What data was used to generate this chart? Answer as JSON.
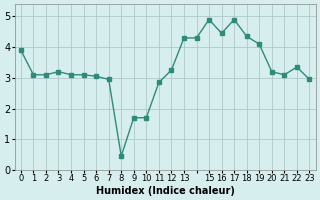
{
  "x": [
    0,
    1,
    2,
    3,
    4,
    5,
    6,
    7,
    8,
    9,
    10,
    11,
    12,
    13,
    14,
    15,
    16,
    17,
    18,
    19,
    20,
    21,
    22,
    23
  ],
  "y": [
    3.9,
    3.1,
    3.1,
    3.2,
    3.1,
    3.1,
    3.05,
    2.95,
    0.45,
    1.7,
    1.7,
    2.85,
    3.25,
    4.3,
    4.3,
    4.9,
    4.45,
    4.9,
    4.35,
    4.1,
    3.2,
    3.1,
    3.35,
    2.95
  ],
  "xlabel": "Humidex (Indice chaleur)",
  "ylabel": "",
  "xlim": [
    -0.5,
    23.5
  ],
  "ylim": [
    0,
    5.4
  ],
  "yticks": [
    0,
    1,
    2,
    3,
    4,
    5
  ],
  "xtick_labels": [
    "0",
    "1",
    "2",
    "3",
    "4",
    "5",
    "6",
    "7",
    "8",
    "9",
    "10",
    "11",
    "12",
    "13",
    "",
    "15",
    "16",
    "17",
    "18",
    "19",
    "20",
    "21",
    "22",
    "23"
  ],
  "line_color": "#2e8b7a",
  "marker_color": "#2e8b7a",
  "bg_color": "#d6eeee",
  "grid_color": "#b0c8c8",
  "axis_bg": "#d6eeee"
}
